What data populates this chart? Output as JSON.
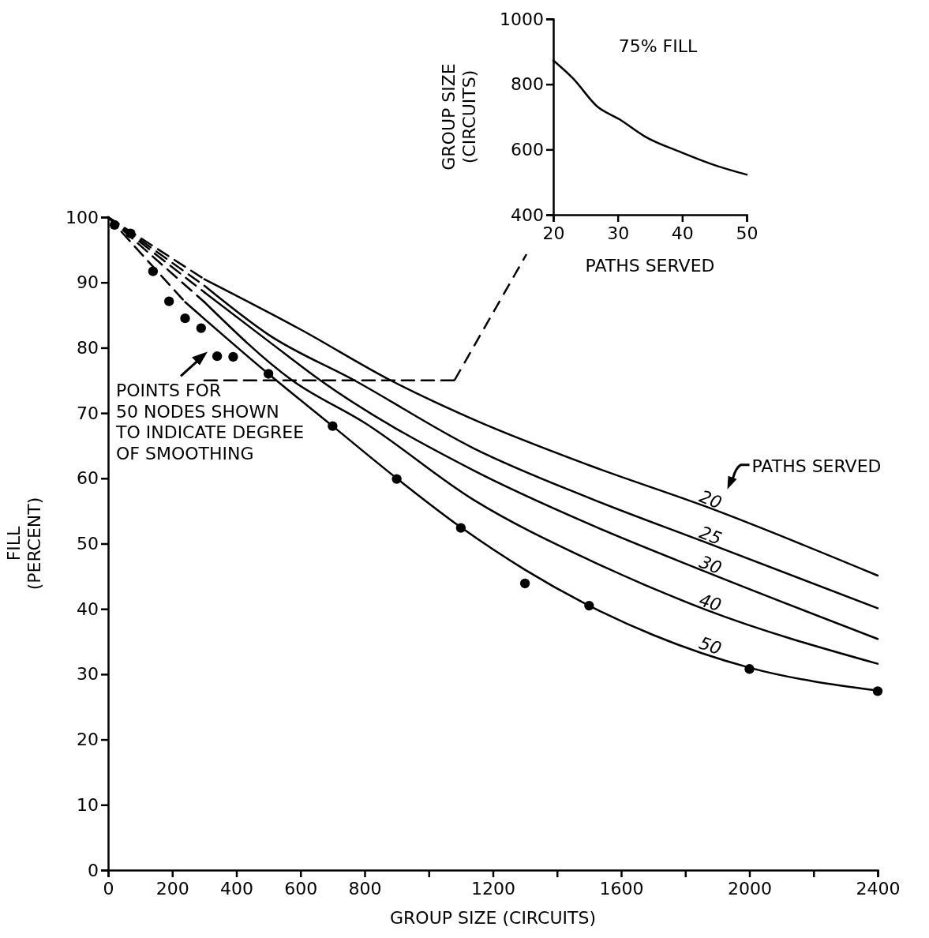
{
  "chart_data": [
    {
      "type": "line",
      "xlabel": "GROUP SIZE (CIRCUITS)",
      "ylabel": "FILL\n(PERCENT)",
      "xlim": [
        0,
        2400
      ],
      "ylim": [
        0,
        100
      ],
      "xticks": [
        0,
        200,
        400,
        600,
        800,
        {
          "value": 1000,
          "label": null
        },
        1200,
        {
          "value": 1400,
          "label": null
        },
        1600,
        {
          "value": 1800,
          "label": null
        },
        2000,
        {
          "value": 2200,
          "label": null
        },
        2400
      ],
      "yticks": [
        0,
        10,
        20,
        30,
        40,
        50,
        60,
        70,
        80,
        90,
        100
      ],
      "legend_title": "PATHS SERVED",
      "annotations": [
        "POINTS FOR\n50 NODES SHOWN\nTO INDICATE DEGREE\nOF SMOOTHING"
      ],
      "series": [
        {
          "type": "line",
          "line_style": "dashed",
          "color": "#000000",
          "x": [
            0,
            300
          ],
          "values": [
            100,
            90.5
          ]
        },
        {
          "type": "line",
          "line_style": "dashed",
          "color": "#000000",
          "x": [
            0,
            300
          ],
          "values": [
            100,
            89.5
          ]
        },
        {
          "type": "line",
          "line_style": "dashed",
          "color": "#000000",
          "x": [
            0,
            300
          ],
          "values": [
            100,
            88.5
          ]
        },
        {
          "type": "line",
          "line_style": "dashed",
          "color": "#000000",
          "x": [
            0,
            300
          ],
          "values": [
            100,
            87
          ]
        },
        {
          "type": "line",
          "line_style": "dashed",
          "color": "#000000",
          "x": [
            0,
            240
          ],
          "values": [
            100,
            87
          ]
        },
        {
          "name": "20",
          "type": "line",
          "line_style": "solid",
          "color": "#000000",
          "x": [
            300,
            600,
            881,
            1140,
            1500,
            1868,
            2400
          ],
          "values": [
            90.5,
            82.8,
            75,
            69,
            62,
            55.6,
            45.1
          ]
        },
        {
          "name": "25",
          "type": "line",
          "line_style": "solid",
          "color": "#000000",
          "x": [
            300,
            500,
            768,
            1140,
            1500,
            1868,
            2400
          ],
          "values": [
            89.5,
            82,
            75,
            64.6,
            57,
            50.1,
            40.1
          ]
        },
        {
          "name": "30",
          "type": "line",
          "line_style": "solid",
          "color": "#000000",
          "x": [
            300,
            500,
            662,
            1140,
            1500,
            1868,
            2400
          ],
          "values": [
            88.5,
            81,
            75,
            61.2,
            53,
            45.6,
            35.4
          ]
        },
        {
          "name": "40",
          "type": "line",
          "line_style": "solid",
          "color": "#000000",
          "x": [
            300,
            574,
            800,
            1140,
            1500,
            1868,
            2400
          ],
          "values": [
            87,
            75,
            68.5,
            56.7,
            47.5,
            39.8,
            31.6
          ]
        },
        {
          "name": "50",
          "type": "line",
          "line_style": "solid",
          "color": "#000000",
          "x": [
            240,
            500,
            700,
            900,
            1100,
            1300,
            1500,
            1700,
            2000,
            2400
          ],
          "values": [
            87,
            76,
            68,
            60,
            52.5,
            46,
            40.5,
            36,
            31,
            27.5
          ]
        },
        {
          "type": "scatter",
          "marker": "circle",
          "color": "#000000",
          "x": [
            20,
            70,
            140,
            190,
            240,
            290,
            340,
            390,
            500,
            700,
            900,
            1100,
            1300,
            1500,
            2000,
            2400
          ],
          "values": [
            98.8,
            97.5,
            91.7,
            87.1,
            84.5,
            83,
            78.7,
            78.6,
            76,
            68,
            59.9,
            52.4,
            43.9,
            40.5,
            30.8,
            27.4
          ]
        },
        {
          "type": "line",
          "line_style": "dashed",
          "color": "#000000",
          "x": [
            300,
            1080
          ],
          "values": [
            75,
            75
          ]
        }
      ]
    },
    {
      "type": "line",
      "title": "75% FILL",
      "xlabel": "PATHS SERVED",
      "ylabel": "GROUP SIZE\n(CIRCUITS)",
      "xlim": [
        20,
        50
      ],
      "ylim": [
        400,
        1000
      ],
      "xticks": [
        20,
        30,
        40,
        50
      ],
      "yticks": [
        400,
        600,
        800,
        1000
      ],
      "color": "#000000",
      "x": [
        20,
        23.1,
        26.8,
        30.3,
        34.2,
        39.9,
        45.2,
        50
      ],
      "values": [
        873,
        817,
        732,
        692,
        640,
        591,
        551,
        523
      ]
    }
  ]
}
